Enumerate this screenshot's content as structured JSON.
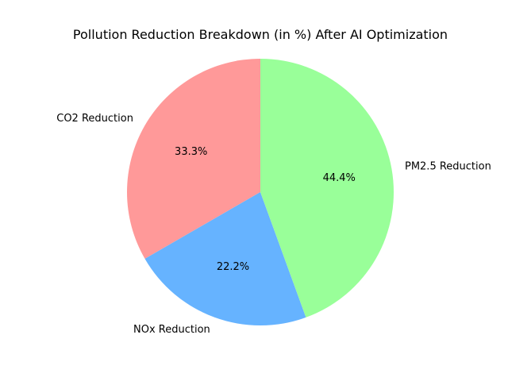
{
  "chart_data": {
    "type": "pie",
    "title": "Pollution Reduction Breakdown (in %) After AI Optimization",
    "labels": [
      "CO2 Reduction",
      "NOx Reduction",
      "PM2.5 Reduction"
    ],
    "values": [
      33.3,
      22.2,
      44.4
    ],
    "percent_labels": [
      "33.3%",
      "22.2%",
      "44.4%"
    ],
    "colors": [
      "#ff9999",
      "#66b3ff",
      "#99ff99"
    ],
    "start_angle_deg": 90,
    "direction": "counterclockwise"
  }
}
